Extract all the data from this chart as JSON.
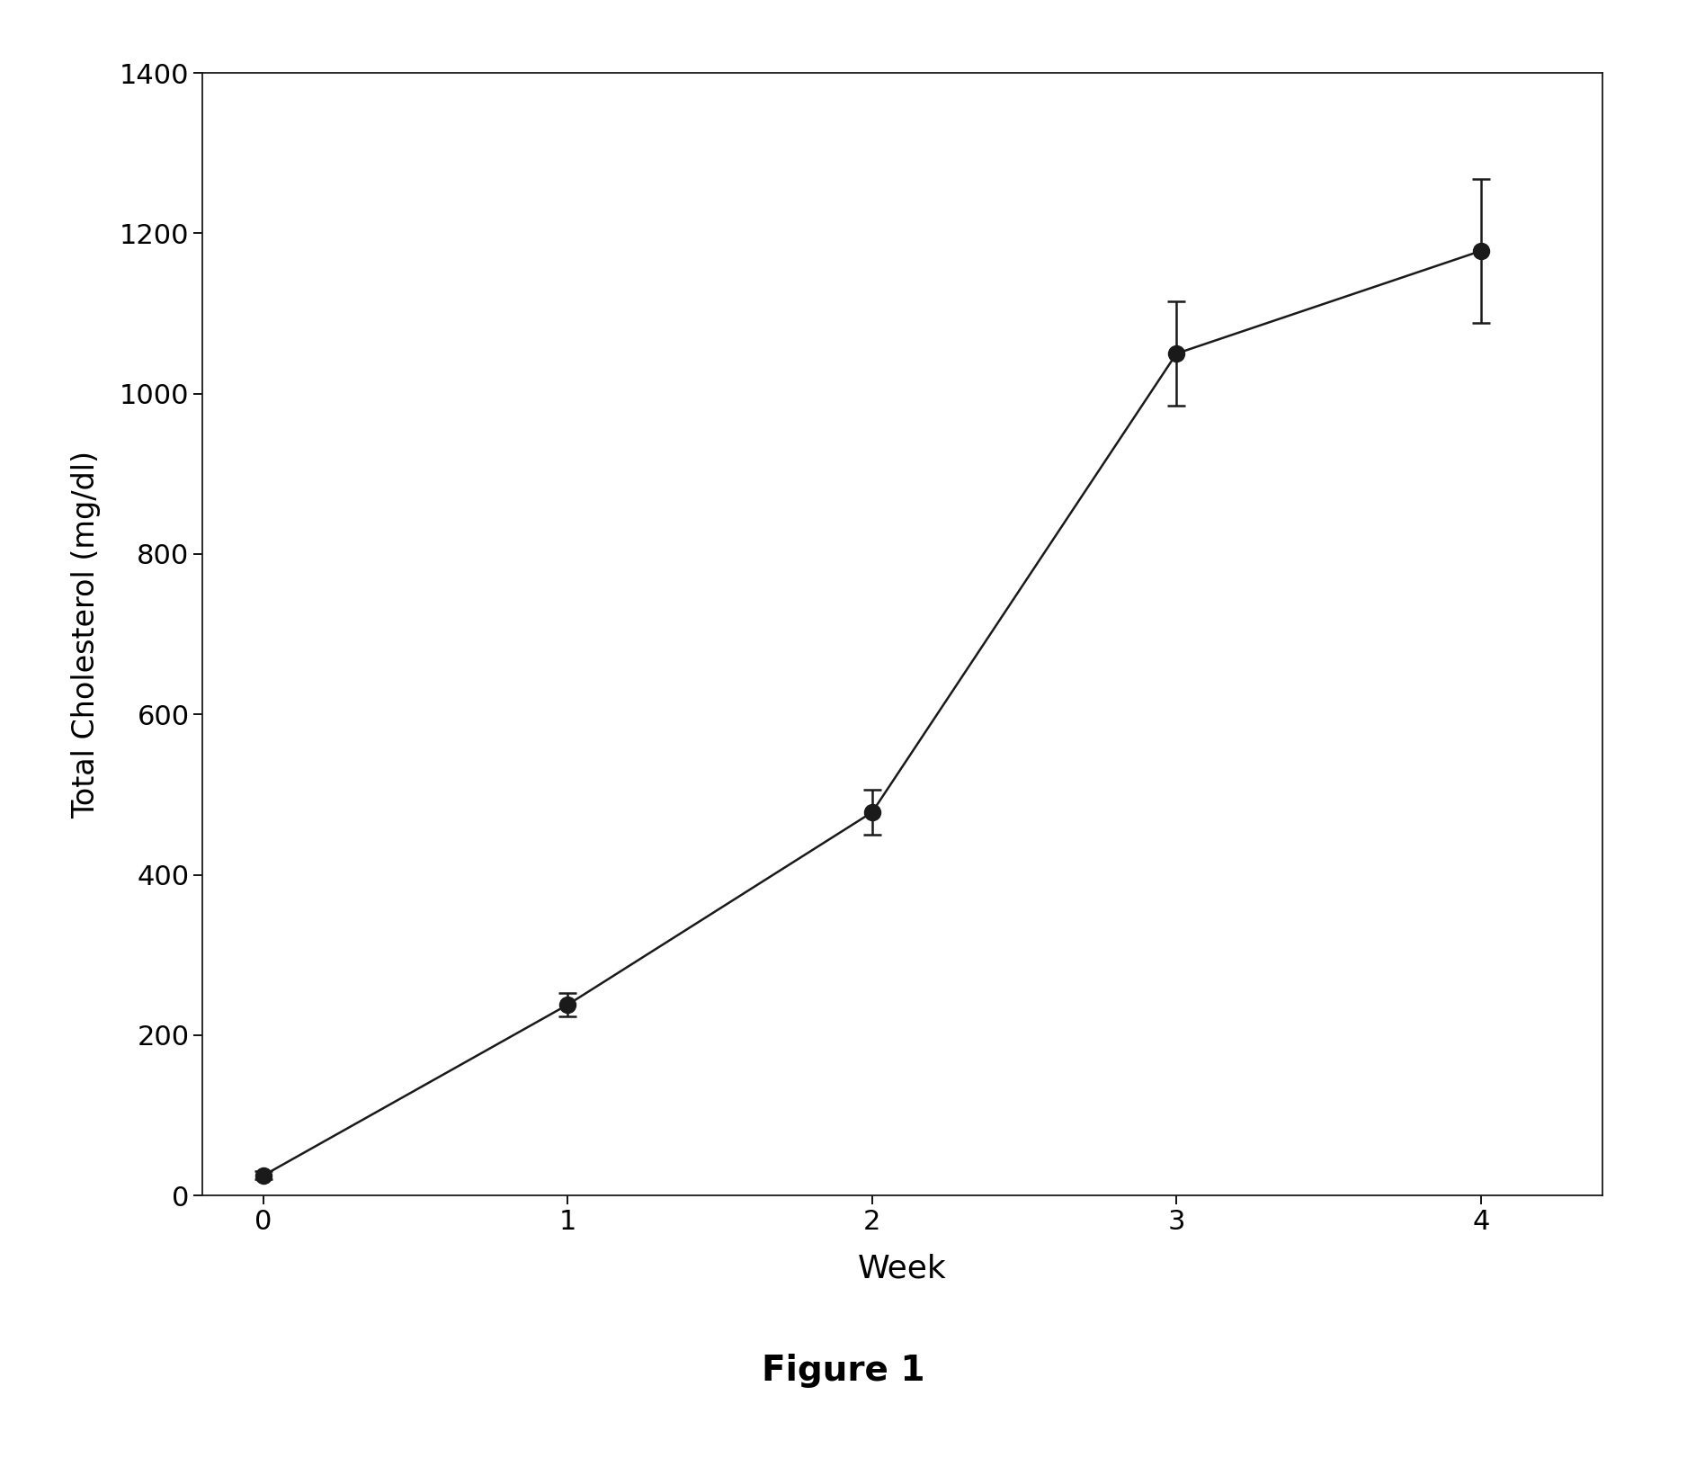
{
  "x": [
    0,
    1,
    2,
    3,
    4
  ],
  "y": [
    25,
    238,
    478,
    1050,
    1178
  ],
  "yerr": [
    5,
    15,
    28,
    65,
    90
  ],
  "xlabel": "Week",
  "ylabel": "Total Cholesterol (mg/dl)",
  "caption": "Figure 1",
  "ylim": [
    0,
    1400
  ],
  "xlim": [
    -0.2,
    4.4
  ],
  "yticks": [
    0,
    200,
    400,
    600,
    800,
    1000,
    1200,
    1400
  ],
  "xticks": [
    0,
    1,
    2,
    3,
    4
  ],
  "line_color": "#1a1a1a",
  "marker_color": "#1a1a1a",
  "marker_size": 13,
  "line_width": 1.8,
  "errorbar_capsize": 7,
  "errorbar_linewidth": 1.8,
  "background_color": "#ffffff",
  "xlabel_fontsize": 26,
  "ylabel_fontsize": 24,
  "tick_fontsize": 22,
  "caption_fontsize": 28,
  "caption_fontweight": "bold"
}
